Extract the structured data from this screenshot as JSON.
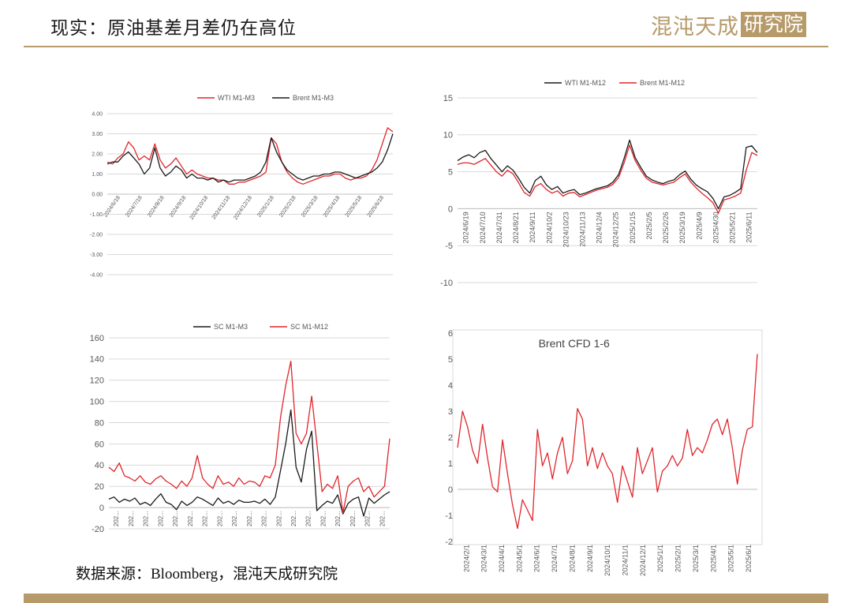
{
  "header": {
    "title": "现实：原油基差月差仍在高位",
    "logo_text": "混沌天成",
    "logo_box": "研究院"
  },
  "footer": {
    "source": "数据来源：Bloomberg，混沌天成研究院"
  },
  "colors": {
    "red": "#e0252b",
    "black": "#1a1a1a",
    "grid": "#d9d9d9",
    "accent": "#b69a6a",
    "axis_text": "#595959"
  },
  "chart_data": [
    {
      "type": "line",
      "title": "",
      "legend_position": "top",
      "ylim": [
        -4,
        4
      ],
      "yticks": [
        "4.00",
        "3.00",
        "2.00",
        "1.00",
        "0.00",
        "-1.00",
        "-2.00",
        "-3.00",
        "-4.00"
      ],
      "x_ticks": [
        "2024/6/18",
        "2024/7/18",
        "2024/8/18",
        "2024/9/18",
        "2024/10/18",
        "2024/11/18",
        "2024/12/18",
        "2025/1/18",
        "2025/2/18",
        "2025/3/18",
        "2025/4/18",
        "2025/5/18",
        "2025/6/18"
      ],
      "grid": true,
      "series": [
        {
          "name": "WTI M1-M3",
          "color": "#e0252b",
          "values": [
            1.6,
            1.5,
            1.8,
            2.0,
            2.6,
            2.3,
            1.7,
            1.9,
            1.7,
            2.5,
            1.7,
            1.3,
            1.5,
            1.8,
            1.4,
            1.0,
            1.2,
            1.0,
            0.9,
            0.8,
            0.8,
            0.7,
            0.7,
            0.5,
            0.5,
            0.6,
            0.6,
            0.7,
            0.8,
            0.9,
            1.1,
            2.8,
            2.5,
            1.6,
            1.1,
            0.8,
            0.6,
            0.5,
            0.6,
            0.7,
            0.8,
            0.9,
            0.9,
            1.0,
            1.0,
            0.8,
            0.7,
            0.8,
            0.8,
            0.9,
            1.2,
            1.7,
            2.5,
            3.3,
            3.1
          ]
        },
        {
          "name": "Brent M1-M3",
          "color": "#1a1a1a",
          "values": [
            1.5,
            1.6,
            1.6,
            1.9,
            2.1,
            1.8,
            1.5,
            1.0,
            1.3,
            2.3,
            1.3,
            0.9,
            1.1,
            1.4,
            1.2,
            0.8,
            1.0,
            0.8,
            0.8,
            0.7,
            0.8,
            0.6,
            0.7,
            0.6,
            0.7,
            0.7,
            0.7,
            0.8,
            0.9,
            1.1,
            1.6,
            2.8,
            2.1,
            1.6,
            1.2,
            1.0,
            0.8,
            0.7,
            0.8,
            0.9,
            0.9,
            1.0,
            1.0,
            1.1,
            1.1,
            1.0,
            0.9,
            0.8,
            0.9,
            1.0,
            1.1,
            1.3,
            1.6,
            2.2,
            3.0
          ]
        }
      ]
    },
    {
      "type": "line",
      "title": "",
      "legend_position": "top",
      "ylim": [
        -10,
        15
      ],
      "yticks": [
        "15",
        "10",
        "5",
        "0",
        "-5",
        "-10"
      ],
      "x_ticks": [
        "2024/6/19",
        "2024/7/10",
        "2024/7/31",
        "2024/8/21",
        "2024/9/11",
        "2024/10/2",
        "2024/10/23",
        "2024/11/13",
        "2024/12/4",
        "2024/12/25",
        "2025/1/15",
        "2025/2/5",
        "2025/2/26",
        "2025/3/19",
        "2025/4/9",
        "2025/4/30",
        "2025/5/21",
        "2025/6/11"
      ],
      "grid": true,
      "series": [
        {
          "name": "WTI M1-M12",
          "color": "#1a1a1a",
          "values": [
            6.5,
            7.0,
            7.3,
            6.9,
            7.6,
            7.9,
            6.8,
            5.9,
            5.0,
            5.8,
            5.2,
            4.1,
            2.9,
            2.1,
            3.8,
            4.4,
            3.2,
            2.6,
            3.0,
            2.1,
            2.4,
            2.6,
            1.9,
            2.1,
            2.4,
            2.7,
            2.9,
            3.1,
            3.6,
            4.6,
            6.8,
            9.3,
            6.9,
            5.6,
            4.4,
            3.9,
            3.6,
            3.4,
            3.7,
            3.9,
            4.6,
            5.1,
            4.0,
            3.2,
            2.7,
            2.3,
            1.4,
            0.0,
            1.6,
            1.8,
            2.2,
            2.7,
            8.3,
            8.5,
            7.6
          ]
        },
        {
          "name": "Brent M1-M12",
          "color": "#e0252b",
          "values": [
            6.0,
            6.2,
            6.2,
            6.0,
            6.4,
            6.8,
            5.9,
            5.0,
            4.4,
            5.2,
            4.7,
            3.5,
            2.2,
            1.7,
            3.0,
            3.4,
            2.6,
            2.1,
            2.4,
            1.7,
            2.1,
            2.2,
            1.6,
            1.9,
            2.2,
            2.5,
            2.7,
            2.9,
            3.3,
            4.2,
            6.2,
            8.6,
            6.5,
            5.2,
            4.1,
            3.6,
            3.4,
            3.2,
            3.4,
            3.6,
            4.2,
            4.7,
            3.6,
            2.8,
            2.1,
            1.5,
            0.8,
            -0.6,
            1.2,
            1.4,
            1.7,
            2.1,
            5.2,
            7.6,
            7.2
          ]
        }
      ]
    },
    {
      "type": "line",
      "title": "",
      "legend_position": "top",
      "ylim": [
        -20,
        160
      ],
      "yticks": [
        "160",
        "140",
        "120",
        "100",
        "80",
        "60",
        "40",
        "20",
        "0",
        "-20"
      ],
      "x_ticks": [
        "202...",
        "202...",
        "202...",
        "202...",
        "202...",
        "202...",
        "202...",
        "202...",
        "202...",
        "202...",
        "202...",
        "202...",
        "202...",
        "202...",
        "202...",
        "202...",
        "202...",
        "202...",
        "202..."
      ],
      "grid": true,
      "series": [
        {
          "name": "SC M1-M3",
          "color": "#1a1a1a",
          "values": [
            8,
            10,
            5,
            8,
            6,
            9,
            3,
            5,
            2,
            8,
            13,
            5,
            3,
            -2,
            6,
            2,
            5,
            10,
            8,
            5,
            2,
            9,
            4,
            6,
            3,
            7,
            5,
            5,
            6,
            4,
            8,
            3,
            10,
            35,
            60,
            92,
            38,
            24,
            55,
            72,
            -3,
            2,
            6,
            4,
            12,
            -6,
            4,
            8,
            10,
            -8,
            9,
            4,
            8,
            12,
            15
          ]
        },
        {
          "name": "SC M1-M12",
          "color": "#e0252b",
          "values": [
            38,
            34,
            42,
            30,
            28,
            25,
            30,
            24,
            22,
            27,
            30,
            25,
            22,
            18,
            25,
            20,
            28,
            49,
            28,
            22,
            18,
            30,
            22,
            24,
            20,
            28,
            22,
            25,
            24,
            20,
            30,
            28,
            40,
            85,
            115,
            138,
            70,
            60,
            70,
            105,
            60,
            15,
            22,
            18,
            30,
            -5,
            20,
            25,
            28,
            15,
            20,
            10,
            15,
            20,
            65
          ]
        }
      ]
    },
    {
      "type": "line",
      "title": "Brent CFD 1-6",
      "legend_position": "none",
      "ylim": [
        -2,
        6
      ],
      "yticks": [
        "6",
        "5",
        "4",
        "3",
        "2",
        "1",
        "0",
        "-1",
        "-2"
      ],
      "x_ticks": [
        "2024/2/1",
        "2024/3/1",
        "2024/4/1",
        "2024/5/1",
        "2024/6/1",
        "2024/7/1",
        "2024/8/1",
        "2024/9/1",
        "2024/10/1",
        "2024/11/1",
        "2024/12/1",
        "2025/1/1",
        "2025/2/1",
        "2025/3/1",
        "2025/4/1",
        "2025/5/1",
        "2025/6/1"
      ],
      "grid": false,
      "series": [
        {
          "name": "",
          "color": "#e0252b",
          "values": [
            1.6,
            3.0,
            2.4,
            1.5,
            1.0,
            2.5,
            1.2,
            0.1,
            -0.1,
            1.9,
            0.6,
            -0.6,
            -1.5,
            -0.4,
            -0.8,
            -1.2,
            2.3,
            0.9,
            1.4,
            0.4,
            1.4,
            2.0,
            0.6,
            1.1,
            3.1,
            2.7,
            0.9,
            1.6,
            0.8,
            1.4,
            0.9,
            0.6,
            -0.5,
            0.9,
            0.3,
            -0.3,
            1.6,
            0.6,
            1.1,
            1.6,
            -0.1,
            0.7,
            0.9,
            1.3,
            0.9,
            1.2,
            2.3,
            1.3,
            1.6,
            1.4,
            1.9,
            2.5,
            2.7,
            2.1,
            2.7,
            1.6,
            0.2,
            1.5,
            2.3,
            2.4,
            5.2
          ]
        }
      ]
    }
  ]
}
